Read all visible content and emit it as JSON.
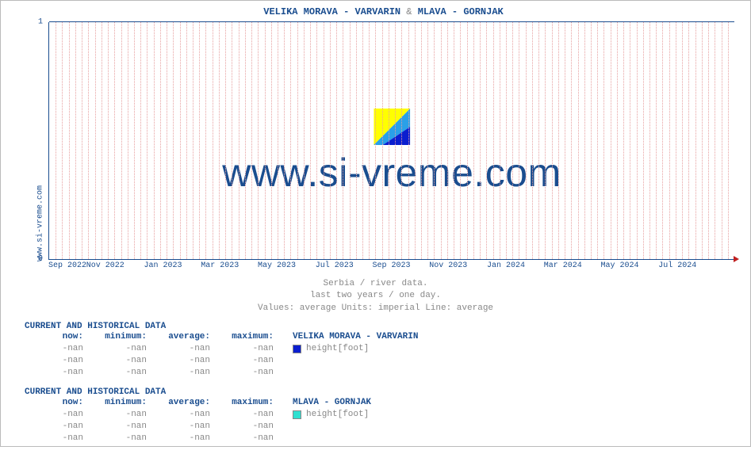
{
  "site_label": "www.si-vreme.com",
  "chart": {
    "type": "line",
    "title_a": "VELIKA MORAVA -  VARVARIN",
    "title_amp": "&",
    "title_b": "MLAVA -  GORNJAK",
    "background_color": "#ffffff",
    "axis_color": "#1a4d8f",
    "grid_color": "#e7a0a0",
    "arrow_color": "#c02020",
    "text_color": "#1a4d8f",
    "subtext_color": "#888888",
    "ylim": [
      0,
      1
    ],
    "yticks": [
      {
        "pos": 0.0,
        "label": "0"
      },
      {
        "pos": 1.0,
        "label": "1"
      }
    ],
    "xticks": [
      {
        "pos": 0.0,
        "label": "Sep 2022"
      },
      {
        "pos": 0.083,
        "label": "Nov 2022"
      },
      {
        "pos": 0.167,
        "label": "Jan 2023"
      },
      {
        "pos": 0.25,
        "label": "Mar 2023"
      },
      {
        "pos": 0.333,
        "label": "May 2023"
      },
      {
        "pos": 0.417,
        "label": "Jul 2023"
      },
      {
        "pos": 0.5,
        "label": "Sep 2023"
      },
      {
        "pos": 0.583,
        "label": "Nov 2023"
      },
      {
        "pos": 0.667,
        "label": "Jan 2024"
      },
      {
        "pos": 0.75,
        "label": "Mar 2024"
      },
      {
        "pos": 0.833,
        "label": "May 2024"
      },
      {
        "pos": 0.917,
        "label": "Jul 2024"
      }
    ],
    "minor_grid_count": 104,
    "watermark_text": "www.si-vreme.com",
    "watermark_logo_colors": [
      "#ffff00",
      "#2aa0e8",
      "#0b1ecf"
    ],
    "subtitle_lines": [
      "Serbia / river data.",
      "last two years / one day.",
      "Values: average  Units: imperial  Line: average"
    ]
  },
  "tables": [
    {
      "title": "CURRENT AND HISTORICAL DATA",
      "headers": [
        "now:",
        "minimum:",
        "average:",
        "maximum:"
      ],
      "series_label": "VELIKA MORAVA -  VARVARIN",
      "swatch_color": "#0b1ecf",
      "metric_label": "height[foot]",
      "rows": [
        [
          "-nan",
          "-nan",
          "-nan",
          "-nan"
        ],
        [
          "-nan",
          "-nan",
          "-nan",
          "-nan"
        ],
        [
          "-nan",
          "-nan",
          "-nan",
          "-nan"
        ]
      ]
    },
    {
      "title": "CURRENT AND HISTORICAL DATA",
      "headers": [
        "now:",
        "minimum:",
        "average:",
        "maximum:"
      ],
      "series_label": "MLAVA -  GORNJAK",
      "swatch_color": "#2fe0d0",
      "metric_label": "height[foot]",
      "rows": [
        [
          "-nan",
          "-nan",
          "-nan",
          "-nan"
        ],
        [
          "-nan",
          "-nan",
          "-nan",
          "-nan"
        ],
        [
          "-nan",
          "-nan",
          "-nan",
          "-nan"
        ]
      ]
    }
  ]
}
